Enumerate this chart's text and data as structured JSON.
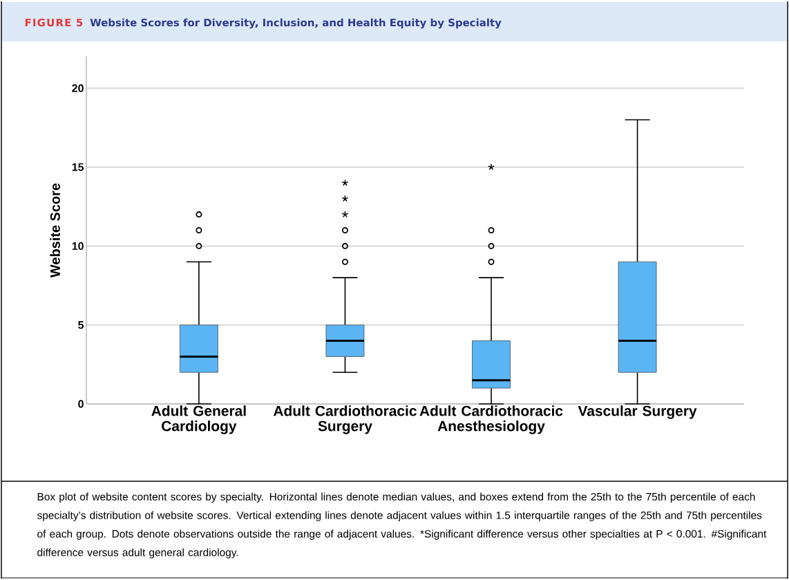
{
  "chart_data": {
    "type": "box",
    "title": "FIGURE 5",
    "subtitle": "Website Scores for Diversity, Inclusion, and Health Equity by Specialty",
    "ylabel": "Website Score",
    "categories": [
      "Adult General Cardiology",
      "Adult Cardiothoracic Surgery",
      "Adult Cardiothoracic Anesthesiology",
      "Vascular Surgery"
    ],
    "series": [
      {
        "color": "#5bb5f5",
        "boxes": [
          {
            "low": 0,
            "q1": 2,
            "median": 3,
            "q3": 5,
            "high": 9,
            "outliers": [
              10,
              11,
              12
            ]
          },
          {
            "low": 2,
            "q1": 3,
            "median": 4,
            "q3": 5,
            "high": 8,
            "outliers": [
              9,
              10,
              11,
              12,
              13,
              14
            ]
          },
          {
            "low": 0,
            "q1": 1,
            "median": 1.5,
            "q3": 4,
            "high": 8,
            "outliers": [
              9,
              10,
              11,
              15
            ]
          },
          {
            "low": 0,
            "q1": 2,
            "median": 4,
            "q3": 9,
            "high": 18
          }
        ]
      }
    ],
    "ylim": [
      0,
      22
    ],
    "yticks": [
      0,
      5,
      10,
      15,
      20
    ],
    "grid": "y",
    "annotations": [
      "Box plot of website content scores by specialty. Horizontal lines denote median values, and boxes extend from the 25th to the 75th percentile of each specialty’s distribution of website scores. Vertical extending lines denote adjacent values within 1.5 interquartile ranges of the 25th and 75th percentiles of each group. Dots denote observations outside the range of adjacent values. *Significant difference versus other specialties at P < 0.001. #Significant difference versus adult general cardiology."
    ]
  }
}
